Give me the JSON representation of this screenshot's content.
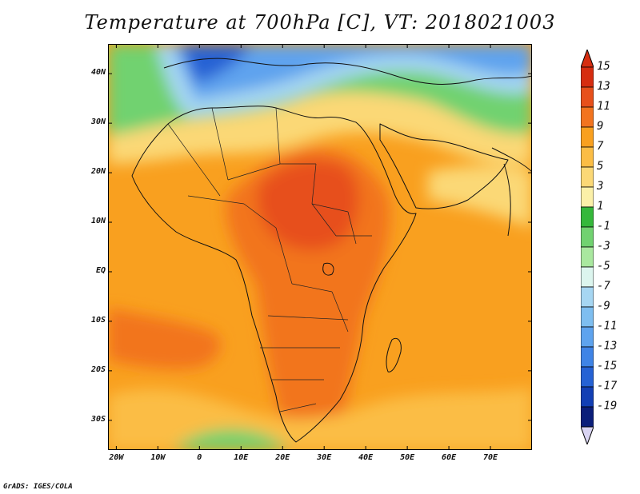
{
  "title": "Temperature at 700hPa [C], VT: 2018021003",
  "credit": "GrADS: IGES/COLA",
  "map": {
    "lon_range": [
      -22,
      80
    ],
    "lat_range": [
      -36,
      46
    ],
    "lat_labels": [
      "40N",
      "30N",
      "20N",
      "10N",
      "EQ",
      "10S",
      "20S",
      "30S"
    ],
    "lat_values": [
      40,
      30,
      20,
      10,
      0,
      -10,
      -20,
      -30
    ],
    "lon_labels": [
      "20W",
      "10W",
      "0",
      "10E",
      "20E",
      "30E",
      "40E",
      "50E",
      "60E",
      "70E"
    ],
    "lon_values": [
      -20,
      -10,
      0,
      10,
      20,
      30,
      40,
      50,
      60,
      70
    ]
  },
  "colorbar": {
    "labels": [
      "15",
      "13",
      "11",
      "9",
      "7",
      "5",
      "3",
      "1",
      "-1",
      "-3",
      "-5",
      "-7",
      "-9",
      "-11",
      "-13",
      "-15",
      "-17",
      "-19"
    ],
    "colors": [
      "#d62d10",
      "#e7501b",
      "#f2741f",
      "#f9a01f",
      "#fbbd45",
      "#fbd876",
      "#fbf0a8",
      "#35b83b",
      "#71d270",
      "#a9e89f",
      "#dcf5ee",
      "#a6d6f2",
      "#7ebef0",
      "#5ea3ee",
      "#3f84e6",
      "#2562d4",
      "#123fb4",
      "#0b1e7a"
    ],
    "top_arrow_color": "#d62d10",
    "bottom_arrow_color": "#d9d4f2"
  }
}
